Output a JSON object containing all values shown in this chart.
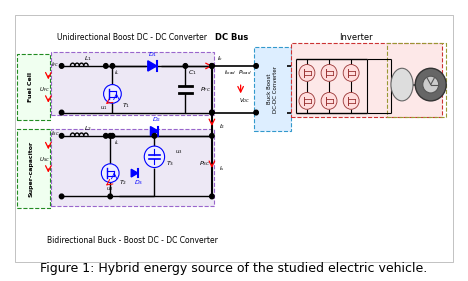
{
  "title": "Figure 1: Hybrid energy source of the studied electric vehicle.",
  "title_fontsize": 9,
  "bg_color": "#ffffff",
  "fig_width": 4.68,
  "fig_height": 2.81,
  "unidirectional_label": "Unidirectional Boost DC - DC Converter",
  "bidirectional_label": "Bidirectional Buck - Boost DC - DC Converter",
  "dcbus_label": "DC Bus",
  "inverter_label": "Inverter",
  "fuel_cell_label": "Fuel Cell",
  "supercap_label": "Super-capacitor",
  "buck_boost_label": "Buck Boost\nDC-DC Converter"
}
